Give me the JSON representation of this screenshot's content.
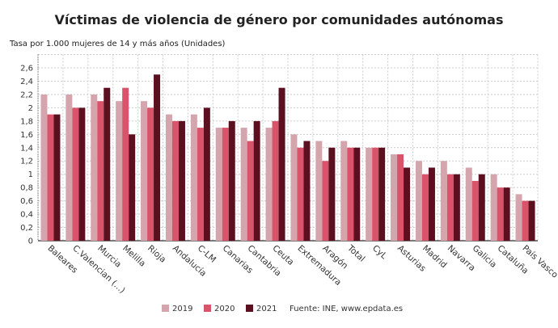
{
  "chart_data": {
    "type": "bar",
    "title": "Víctimas de violencia de género por comunidades autónomas",
    "ylabel": "Tasa por 1.000 mujeres de 14 y más años (Unidades)",
    "xlabel": "",
    "ylim": [
      0,
      2.8
    ],
    "yticks": [
      "0",
      "0,2",
      "0,4",
      "0,6",
      "0,8",
      "1",
      "1,2",
      "1,4",
      "1,6",
      "1,8",
      "2",
      "2,2",
      "2,4",
      "2,6"
    ],
    "grid": true,
    "legend_position": "bottom",
    "source": "Fuente: INE, www.epdata.es",
    "categories": [
      "Baleares",
      "C.Valencian (...)",
      "Murcia",
      "Melilla",
      "Rioja",
      "Andalucía",
      "C-LM",
      "Canarias",
      "Cantabria",
      "Ceuta",
      "Extremadura",
      "Aragón",
      "Total",
      "CyL",
      "Asturias",
      "Madrid",
      "Navarra",
      "Galicia",
      "Cataluña",
      "País Vasco"
    ],
    "series": [
      {
        "name": "2019",
        "color": "#d4a5ad",
        "values": [
          2.2,
          2.2,
          2.2,
          2.1,
          2.1,
          1.9,
          1.9,
          1.7,
          1.7,
          1.7,
          1.6,
          1.5,
          1.5,
          1.4,
          1.3,
          1.2,
          1.2,
          1.1,
          1.0,
          0.7
        ]
      },
      {
        "name": "2020",
        "color": "#d9546a",
        "values": [
          1.9,
          2.0,
          2.1,
          2.3,
          2.0,
          1.8,
          1.7,
          1.7,
          1.5,
          1.8,
          1.4,
          1.2,
          1.4,
          1.4,
          1.3,
          1.0,
          1.0,
          0.9,
          0.8,
          0.6
        ]
      },
      {
        "name": "2021",
        "color": "#5c0f1f",
        "values": [
          1.9,
          2.0,
          2.3,
          1.6,
          2.5,
          1.8,
          2.0,
          1.8,
          1.8,
          2.3,
          1.5,
          1.4,
          1.4,
          1.4,
          1.1,
          1.1,
          1.0,
          1.0,
          0.8,
          0.6
        ]
      }
    ]
  }
}
